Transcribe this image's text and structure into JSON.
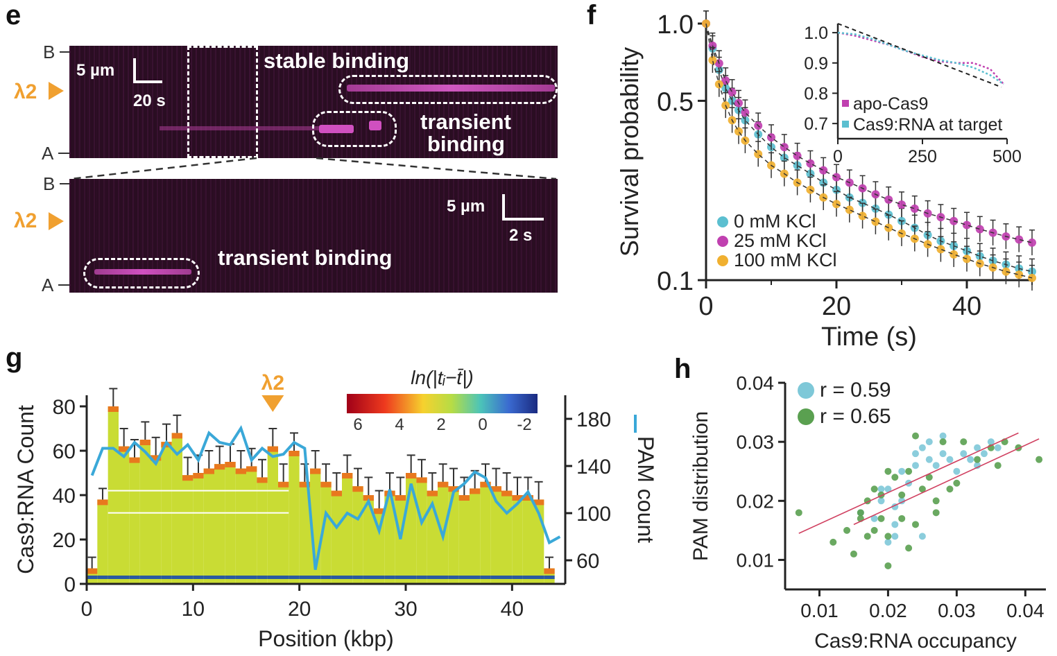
{
  "panels": {
    "e": {
      "label": "e",
      "top_kymo": {
        "scale_length": "5 µm",
        "scale_time": "20 s",
        "label_stable": "stable binding",
        "label_transient_line1": "transient",
        "label_transient_line2": "binding"
      },
      "bottom_kymo": {
        "scale_length": "5 µm",
        "scale_time": "2 s",
        "label_transient": "transient binding"
      },
      "axis_b": "B",
      "axis_a": "A",
      "lambda": "λ2"
    },
    "f": {
      "label": "f"
    },
    "g": {
      "label": "g"
    },
    "h": {
      "label": "h"
    }
  },
  "chart_data": [
    {
      "panel": "f",
      "type": "scatter",
      "xlabel": "Time (s)",
      "ylabel": "Survival probability",
      "yscale": "log",
      "xlim": [
        0,
        50
      ],
      "ylim": [
        0.1,
        1.0
      ],
      "xticks": [
        "0",
        "20",
        "40"
      ],
      "yticks": [
        "0.1",
        "0.5",
        "1.0"
      ],
      "legend_position": "lower-left",
      "series": [
        {
          "name": "0 mM KCl",
          "color": "#5bbfd0",
          "x": [
            0,
            1,
            2,
            3,
            4,
            5,
            6,
            8,
            10,
            12,
            14,
            16,
            18,
            20,
            22,
            24,
            26,
            28,
            30,
            32,
            34,
            36,
            38,
            40,
            42,
            44,
            46,
            48,
            50
          ],
          "values": [
            1.0,
            0.8,
            0.66,
            0.56,
            0.5,
            0.46,
            0.42,
            0.37,
            0.33,
            0.3,
            0.28,
            0.26,
            0.24,
            0.225,
            0.21,
            0.2,
            0.19,
            0.18,
            0.17,
            0.16,
            0.15,
            0.142,
            0.136,
            0.13,
            0.124,
            0.119,
            0.115,
            0.111,
            0.108
          ]
        },
        {
          "name": "25 mM KCl",
          "color": "#c040b0",
          "x": [
            0,
            1,
            2,
            3,
            4,
            5,
            6,
            8,
            10,
            12,
            14,
            16,
            18,
            20,
            22,
            24,
            26,
            28,
            30,
            32,
            34,
            36,
            38,
            40,
            42,
            44,
            46,
            48,
            50
          ],
          "values": [
            1.0,
            0.82,
            0.7,
            0.6,
            0.54,
            0.49,
            0.45,
            0.4,
            0.36,
            0.33,
            0.305,
            0.285,
            0.268,
            0.252,
            0.24,
            0.228,
            0.216,
            0.206,
            0.197,
            0.19,
            0.182,
            0.176,
            0.17,
            0.164,
            0.158,
            0.153,
            0.148,
            0.144,
            0.14
          ]
        },
        {
          "name": "100 mM KCl",
          "color": "#f0b030",
          "x": [
            0,
            1,
            2,
            3,
            4,
            5,
            6,
            8,
            10,
            12,
            14,
            16,
            18,
            20,
            22,
            24,
            26,
            28,
            30,
            32,
            34,
            36,
            38,
            40,
            42,
            44,
            46,
            48,
            50
          ],
          "values": [
            1.0,
            0.72,
            0.58,
            0.48,
            0.42,
            0.38,
            0.35,
            0.31,
            0.28,
            0.26,
            0.24,
            0.225,
            0.21,
            0.198,
            0.188,
            0.178,
            0.169,
            0.16,
            0.152,
            0.145,
            0.138,
            0.132,
            0.126,
            0.121,
            0.116,
            0.112,
            0.108,
            0.105,
            0.102
          ]
        }
      ],
      "inset": {
        "xticks": [
          "0",
          "250",
          "500"
        ],
        "yticks": [
          "1.0",
          "0.9",
          "0.8",
          "0.7"
        ],
        "xlim": [
          0,
          500
        ],
        "ylim": [
          0.65,
          1.03
        ],
        "series": [
          {
            "name": "apo-Cas9",
            "color": "#c040b0",
            "x": [
              0,
              50,
              100,
              150,
              200,
              250,
              300,
              350,
              400,
              450,
              490
            ],
            "values": [
              1.0,
              0.99,
              0.975,
              0.96,
              0.94,
              0.92,
              0.905,
              0.9,
              0.9,
              0.88,
              0.83
            ]
          },
          {
            "name": "Cas9:RNA at target",
            "color": "#5bbfd0",
            "x": [
              0,
              50,
              100,
              150,
              200,
              250,
              300,
              350,
              400,
              450,
              490
            ],
            "values": [
              1.0,
              0.995,
              0.98,
              0.96,
              0.94,
              0.925,
              0.91,
              0.9,
              0.885,
              0.86,
              0.83
            ]
          }
        ]
      }
    },
    {
      "panel": "g",
      "type": "bar",
      "xlabel": "Position (kbp)",
      "ylabel": "Cas9:RNA Count",
      "y2label": "PAM count",
      "xlim": [
        0,
        45
      ],
      "ylim": [
        0,
        85
      ],
      "y2lim": [
        40,
        200
      ],
      "xticks": [
        "0",
        "10",
        "20",
        "30",
        "40"
      ],
      "yticks": [
        "0",
        "20",
        "40",
        "60",
        "80"
      ],
      "y2ticks": [
        "60",
        "100",
        "140",
        "180"
      ],
      "colorbar_title": "ln(|tᵢ−t̄|)",
      "colorbar_ticks": [
        "6",
        "4",
        "2",
        "0",
        "-2"
      ],
      "lambda_label": "λ2",
      "lambda_position": 17.5,
      "bars": {
        "x": [
          0.5,
          1.5,
          2.5,
          3.5,
          4.5,
          5.5,
          6.5,
          7.5,
          8.5,
          9.5,
          10.5,
          11.5,
          12.5,
          13.5,
          14.5,
          15.5,
          16.5,
          17.5,
          18.5,
          19.5,
          20.5,
          21.5,
          22.5,
          23.5,
          24.5,
          25.5,
          26.5,
          27.5,
          28.5,
          29.5,
          30.5,
          31.5,
          32.5,
          33.5,
          34.5,
          35.5,
          36.5,
          37.5,
          38.5,
          39.5,
          40.5,
          41.5,
          42.5,
          43.5
        ],
        "values": [
          7,
          38,
          80,
          62,
          57,
          65,
          58,
          64,
          68,
          49,
          50,
          52,
          54,
          55,
          52,
          53,
          48,
          62,
          46,
          60,
          46,
          52,
          46,
          42,
          50,
          44,
          40,
          34,
          42,
          40,
          50,
          48,
          42,
          46,
          44,
          40,
          43,
          46,
          44,
          42,
          40,
          40,
          38,
          7
        ],
        "errors": [
          5,
          5,
          8,
          8,
          8,
          8,
          8,
          8,
          8,
          8,
          8,
          8,
          8,
          8,
          8,
          8,
          8,
          8,
          8,
          8,
          8,
          8,
          8,
          8,
          8,
          8,
          8,
          8,
          8,
          8,
          8,
          8,
          8,
          8,
          8,
          8,
          8,
          8,
          8,
          8,
          8,
          8,
          8,
          5
        ]
      },
      "pam": {
        "name": "PAM count",
        "color": "#3aa8d8",
        "x": [
          0.5,
          1.5,
          2.5,
          3.5,
          4.5,
          5.5,
          6.5,
          7.5,
          8.5,
          9.5,
          10.5,
          11.5,
          12.5,
          13.5,
          14.5,
          15.5,
          16.5,
          17.5,
          18.5,
          19.5,
          20.5,
          21.5,
          22.5,
          23.5,
          24.5,
          25.5,
          26.5,
          27.5,
          28.5,
          29.5,
          30.5,
          31.5,
          32.5,
          33.5,
          34.5,
          35.5,
          36.5,
          37.5,
          38.5,
          39.5,
          40.5,
          41.5,
          42.5,
          43.5,
          44.5
        ],
        "values": [
          132,
          155,
          155,
          148,
          160,
          152,
          142,
          160,
          150,
          158,
          145,
          168,
          160,
          158,
          172,
          145,
          155,
          148,
          150,
          160,
          155,
          52,
          100,
          88,
          100,
          95,
          110,
          85,
          120,
          78,
          125,
          92,
          108,
          80,
          118,
          125,
          135,
          130,
          110,
          100,
          108,
          118,
          100,
          75,
          80
        ]
      }
    },
    {
      "panel": "h",
      "type": "scatter",
      "xlabel": "Cas9:RNA occupancy",
      "ylabel": "PAM distribution",
      "xlim": [
        0.005,
        0.043
      ],
      "ylim": [
        0.005,
        0.04
      ],
      "xticks": [
        "0.01",
        "0.02",
        "0.03",
        "0.04"
      ],
      "yticks": [
        "0.01",
        "0.02",
        "0.03",
        "0.04"
      ],
      "legend_position": "top-left",
      "series": [
        {
          "name": "r = 0.59",
          "color": "#7ec8d8",
          "x": [
            0.016,
            0.018,
            0.019,
            0.02,
            0.021,
            0.021,
            0.022,
            0.022,
            0.023,
            0.024,
            0.024,
            0.025,
            0.026,
            0.026,
            0.027,
            0.028,
            0.029,
            0.03,
            0.031,
            0.032,
            0.033,
            0.034,
            0.035,
            0.036,
            0.02,
            0.021,
            0.019,
            0.025,
            0.028,
            0.033
          ],
          "values": [
            0.018,
            0.017,
            0.02,
            0.022,
            0.016,
            0.014,
            0.02,
            0.025,
            0.023,
            0.026,
            0.028,
            0.029,
            0.027,
            0.03,
            0.026,
            0.028,
            0.027,
            0.025,
            0.028,
            0.027,
            0.029,
            0.028,
            0.03,
            0.029,
            0.013,
            0.019,
            0.022,
            0.014,
            0.031,
            0.026
          ]
        },
        {
          "name": "r = 0.65",
          "color": "#5aa050",
          "x": [
            0.007,
            0.012,
            0.014,
            0.015,
            0.016,
            0.016,
            0.017,
            0.018,
            0.018,
            0.019,
            0.019,
            0.02,
            0.02,
            0.021,
            0.022,
            0.022,
            0.023,
            0.024,
            0.025,
            0.026,
            0.027,
            0.028,
            0.029,
            0.03,
            0.031,
            0.033,
            0.035,
            0.036,
            0.037,
            0.039,
            0.042,
            0.02,
            0.023,
            0.027,
            0.017,
            0.024
          ],
          "values": [
            0.018,
            0.013,
            0.015,
            0.011,
            0.018,
            0.017,
            0.02,
            0.015,
            0.022,
            0.017,
            0.021,
            0.009,
            0.014,
            0.024,
            0.021,
            0.017,
            0.025,
            0.016,
            0.022,
            0.024,
            0.02,
            0.03,
            0.022,
            0.023,
            0.03,
            0.027,
            0.029,
            0.026,
            0.03,
            0.029,
            0.027,
            0.025,
            0.012,
            0.018,
            0.014,
            0.031
          ]
        }
      ],
      "fit_lines": [
        {
          "x": [
            0.007,
            0.039
          ],
          "values": [
            0.0145,
            0.0315
          ],
          "color": "#d04060"
        },
        {
          "x": [
            0.015,
            0.042
          ],
          "values": [
            0.016,
            0.0305
          ],
          "color": "#d04060"
        }
      ]
    }
  ]
}
